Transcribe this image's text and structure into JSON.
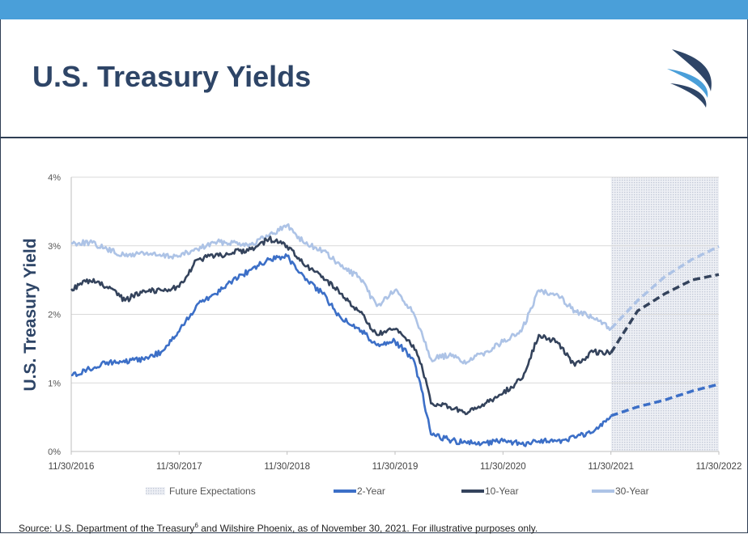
{
  "slide": {
    "title": "U.S. Treasury Yields",
    "source_before": "Source: U.S. Department of the Treasury",
    "source_sup": "6",
    "source_after": " and Wilshire Phoenix, as of November 30, 2021. For illustrative purposes only."
  },
  "colors": {
    "accent_bar": "#4a9fd9",
    "title": "#2e4567",
    "two_year": "#3c6fc7",
    "ten_year": "#34435c",
    "thirty_year": "#adc3e6",
    "future_shade": "#d5dae5"
  },
  "chart_data": {
    "type": "line",
    "ylabel": "U.S. Treasury Yield",
    "x_tick_labels": [
      "11/30/2016",
      "11/30/2017",
      "11/30/2018",
      "11/30/2019",
      "11/30/2020",
      "11/30/2021",
      "11/30/2022"
    ],
    "y_tick_labels": [
      "0%",
      "1%",
      "2%",
      "3%",
      "4%"
    ],
    "ylim": [
      0,
      4
    ],
    "xlim": [
      "2016-11-30",
      "2022-11-30"
    ],
    "grid": "horizontal",
    "legend_position": "bottom",
    "shaded_region": {
      "name": "Future Expectations",
      "from": "2021-11-30",
      "to": "2022-11-30"
    },
    "x": [
      "2016-11-30",
      "2017-01-31",
      "2017-03-31",
      "2017-05-31",
      "2017-07-31",
      "2017-09-30",
      "2017-11-30",
      "2018-01-31",
      "2018-03-31",
      "2018-05-31",
      "2018-07-31",
      "2018-09-30",
      "2018-11-30",
      "2019-01-31",
      "2019-03-31",
      "2019-05-31",
      "2019-07-31",
      "2019-09-30",
      "2019-11-30",
      "2020-01-31",
      "2020-02-28",
      "2020-03-31",
      "2020-05-31",
      "2020-07-31",
      "2020-09-30",
      "2020-11-30",
      "2021-01-31",
      "2021-03-31",
      "2021-05-31",
      "2021-07-31",
      "2021-09-30",
      "2021-11-30"
    ],
    "series": [
      {
        "name": "30-Year",
        "style": "solid",
        "values": [
          3.04,
          3.05,
          2.95,
          2.85,
          2.9,
          2.85,
          2.85,
          2.95,
          3.05,
          3.05,
          3.02,
          3.15,
          3.3,
          3.03,
          2.93,
          2.7,
          2.55,
          2.12,
          2.35,
          2.03,
          1.75,
          1.35,
          1.4,
          1.3,
          1.45,
          1.6,
          1.75,
          2.35,
          2.3,
          2.05,
          1.95,
          1.79
        ]
      },
      {
        "name": "10-Year",
        "style": "solid",
        "values": [
          2.37,
          2.5,
          2.4,
          2.2,
          2.35,
          2.35,
          2.4,
          2.8,
          2.85,
          2.9,
          2.95,
          3.1,
          3.0,
          2.7,
          2.55,
          2.3,
          2.05,
          1.7,
          1.78,
          1.55,
          1.27,
          0.7,
          0.65,
          0.55,
          0.7,
          0.85,
          1.05,
          1.7,
          1.6,
          1.25,
          1.45,
          1.44
        ]
      },
      {
        "name": "2-Year",
        "style": "solid",
        "values": [
          1.11,
          1.2,
          1.3,
          1.3,
          1.35,
          1.45,
          1.75,
          2.15,
          2.3,
          2.5,
          2.65,
          2.8,
          2.85,
          2.5,
          2.3,
          1.95,
          1.8,
          1.55,
          1.61,
          1.35,
          0.9,
          0.25,
          0.17,
          0.12,
          0.13,
          0.15,
          0.11,
          0.15,
          0.15,
          0.2,
          0.28,
          0.52
        ]
      }
    ],
    "expectations": {
      "x": [
        "2021-11-30",
        "2022-02-28",
        "2022-05-31",
        "2022-08-31",
        "2022-11-30"
      ],
      "series": [
        {
          "name": "30-Year",
          "style": "dashed",
          "values": [
            1.79,
            2.2,
            2.55,
            2.8,
            2.99
          ]
        },
        {
          "name": "10-Year",
          "style": "dashed",
          "values": [
            1.44,
            2.05,
            2.3,
            2.5,
            2.58
          ]
        },
        {
          "name": "2-Year",
          "style": "dashed",
          "values": [
            0.52,
            0.65,
            0.75,
            0.88,
            0.98
          ]
        }
      ]
    },
    "legend": [
      {
        "label": "Future Expectations",
        "kind": "shade"
      },
      {
        "label": "2-Year",
        "kind": "line"
      },
      {
        "label": "10-Year",
        "kind": "line"
      },
      {
        "label": "30-Year",
        "kind": "line"
      }
    ]
  }
}
